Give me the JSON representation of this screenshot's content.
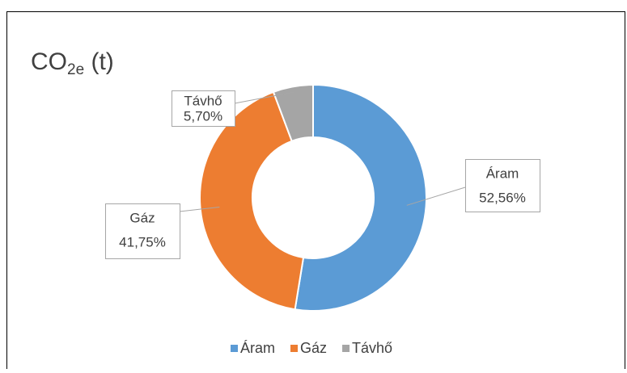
{
  "chart_data": {
    "type": "donut",
    "title": [
      "CO",
      "2e",
      " (t)"
    ],
    "categories": [
      "Áram",
      "Gáz",
      "Távhő"
    ],
    "values": [
      52.56,
      41.75,
      5.7
    ],
    "value_labels": [
      "52,56%",
      "41,75%",
      "5,70%"
    ],
    "colors": [
      "#5b9bd5",
      "#ed7d31",
      "#a5a5a5"
    ],
    "legend": "bottom"
  }
}
